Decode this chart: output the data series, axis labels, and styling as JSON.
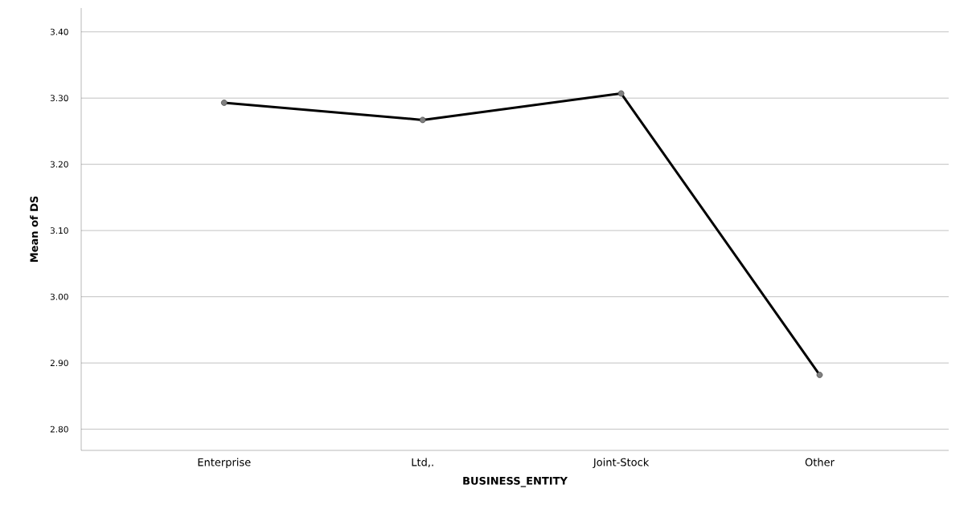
{
  "chart_data": {
    "type": "line",
    "xlabel": "BUSINESS_ENTITY",
    "ylabel": "Mean of DS",
    "categories": [
      "Enterprise",
      "Ltd,.",
      "Joint-Stock",
      "Other"
    ],
    "values": [
      3.293,
      3.267,
      3.307,
      2.882
    ],
    "color": "#000000",
    "ylim": [
      2.768,
      3.436
    ],
    "yticks": [
      {
        "value": 2.8,
        "label": "2.80"
      },
      {
        "value": 2.9,
        "label": "2.90"
      },
      {
        "value": 3.0,
        "label": "3.00"
      },
      {
        "value": 3.1,
        "label": "3.10"
      },
      {
        "value": 3.2,
        "label": "3.20"
      },
      {
        "value": 3.3,
        "label": "3.30"
      },
      {
        "value": 3.4,
        "label": "3.40"
      }
    ],
    "grid": "y",
    "marker": "circle",
    "line_style": "solid"
  }
}
